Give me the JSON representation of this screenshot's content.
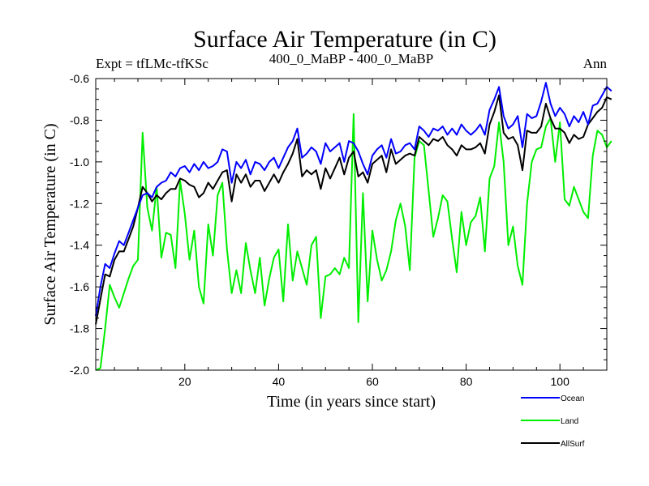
{
  "chart_data": {
    "type": "line",
    "title": "Surface Air Temperature (in C)",
    "left_string": "Expt = tfLMc-tfKSc",
    "center_string": "400_0_MaBP - 400_0_MaBP",
    "right_string": "Ann",
    "xlabel": "Time (in years since start)",
    "ylabel": "Surface Air Temperature (in C)",
    "xlim": [
      1,
      110
    ],
    "ylim": [
      -2.0,
      -0.6
    ],
    "x_ticks": [
      20,
      40,
      60,
      80,
      100
    ],
    "x_tick_labels": [
      "20",
      "40",
      "60",
      "80",
      "100"
    ],
    "y_ticks": [
      -2.0,
      -1.8,
      -1.6,
      -1.4,
      -1.2,
      -1.0,
      -0.8,
      -0.6
    ],
    "y_tick_labels": [
      "-2.0",
      "-1.8",
      "-1.6",
      "-1.4",
      "-1.2",
      "-1.0",
      "-0.8",
      "-0.6"
    ],
    "grid": false,
    "legend_position": "bottom-right",
    "series": [
      {
        "name": "Ocean",
        "color": "#0000ff",
        "values": [
          -1.74,
          -1.6,
          -1.49,
          -1.51,
          -1.44,
          -1.38,
          -1.4,
          -1.34,
          -1.28,
          -1.22,
          -1.16,
          -1.15,
          -1.17,
          -1.12,
          -1.1,
          -1.09,
          -1.05,
          -1.07,
          -1.03,
          -1.02,
          -1.05,
          -1.01,
          -1.04,
          -1.0,
          -1.03,
          -1.02,
          -1.0,
          -0.94,
          -0.95,
          -1.1,
          -1.0,
          -1.03,
          -0.99,
          -1.06,
          -1.0,
          -1.01,
          -1.04,
          -1.0,
          -0.98,
          -1.03,
          -0.98,
          -0.93,
          -0.9,
          -0.84,
          -0.98,
          -0.96,
          -0.93,
          -0.95,
          -1.01,
          -0.91,
          -0.95,
          -0.93,
          -0.91,
          -1.0,
          -0.9,
          -0.91,
          -0.95,
          -1.01,
          -1.06,
          -0.97,
          -0.94,
          -0.92,
          -0.98,
          -0.89,
          -0.96,
          -0.95,
          -0.92,
          -0.91,
          -0.94,
          -0.83,
          -0.85,
          -0.88,
          -0.84,
          -0.85,
          -0.83,
          -0.87,
          -0.84,
          -0.87,
          -0.82,
          -0.85,
          -0.87,
          -0.85,
          -0.82,
          -0.87,
          -0.75,
          -0.7,
          -0.64,
          -0.78,
          -0.84,
          -0.82,
          -0.78,
          -0.93,
          -0.77,
          -0.79,
          -0.78,
          -0.71,
          -0.62,
          -0.72,
          -0.78,
          -0.74,
          -0.77,
          -0.83,
          -0.78,
          -0.81,
          -0.76,
          -0.82,
          -0.73,
          -0.72,
          -0.68,
          -0.64,
          -0.66
        ]
      },
      {
        "name": "Land",
        "color": "#00ee00",
        "values": [
          -2.0,
          -1.99,
          -1.8,
          -1.59,
          -1.65,
          -1.7,
          -1.63,
          -1.56,
          -1.5,
          -1.47,
          -0.86,
          -1.22,
          -1.33,
          -1.12,
          -1.46,
          -1.34,
          -1.35,
          -1.51,
          -1.09,
          -1.25,
          -1.47,
          -1.33,
          -1.6,
          -1.68,
          -1.3,
          -1.45,
          -1.16,
          -1.1,
          -1.42,
          -1.63,
          -1.52,
          -1.63,
          -1.39,
          -1.52,
          -1.63,
          -1.46,
          -1.69,
          -1.56,
          -1.46,
          -1.42,
          -1.67,
          -1.3,
          -1.57,
          -1.43,
          -1.51,
          -1.59,
          -1.4,
          -1.36,
          -1.75,
          -1.55,
          -1.54,
          -1.51,
          -1.54,
          -1.46,
          -1.51,
          -0.77,
          -1.77,
          -1.15,
          -1.67,
          -1.33,
          -1.47,
          -1.57,
          -1.52,
          -1.43,
          -1.28,
          -1.2,
          -1.31,
          -1.52,
          -0.98,
          -0.9,
          -0.92,
          -1.14,
          -1.36,
          -1.27,
          -1.16,
          -1.19,
          -1.37,
          -1.53,
          -1.24,
          -1.4,
          -1.29,
          -1.26,
          -1.17,
          -1.43,
          -1.08,
          -1.02,
          -0.81,
          -1.0,
          -1.4,
          -1.31,
          -1.5,
          -1.59,
          -1.2,
          -1.0,
          -0.94,
          -0.93,
          -0.83,
          -0.79,
          -1.0,
          -0.81,
          -1.18,
          -1.21,
          -1.12,
          -1.18,
          -1.24,
          -1.27,
          -0.97,
          -0.85,
          -0.87,
          -0.93,
          -0.9
        ]
      },
      {
        "name": "AllSurf",
        "color": "#000000",
        "values": [
          -1.78,
          -1.66,
          -1.54,
          -1.55,
          -1.47,
          -1.43,
          -1.43,
          -1.37,
          -1.31,
          -1.22,
          -1.12,
          -1.15,
          -1.19,
          -1.16,
          -1.18,
          -1.15,
          -1.13,
          -1.13,
          -1.08,
          -1.09,
          -1.11,
          -1.12,
          -1.17,
          -1.15,
          -1.1,
          -1.13,
          -1.09,
          -1.05,
          -1.04,
          -1.19,
          -1.06,
          -1.1,
          -1.06,
          -1.12,
          -1.09,
          -1.09,
          -1.14,
          -1.1,
          -1.06,
          -1.1,
          -1.05,
          -1.01,
          -0.96,
          -0.89,
          -1.07,
          -1.04,
          -1.06,
          -1.04,
          -1.13,
          -1.03,
          -1.08,
          -1.03,
          -0.98,
          -1.06,
          -0.98,
          -0.95,
          -1.07,
          -1.05,
          -1.1,
          -1.01,
          -0.99,
          -0.97,
          -1.05,
          -0.94,
          -1.01,
          -0.99,
          -0.97,
          -0.96,
          -0.97,
          -0.88,
          -0.9,
          -0.92,
          -0.89,
          -0.9,
          -0.88,
          -0.92,
          -0.94,
          -0.97,
          -0.92,
          -0.94,
          -0.94,
          -0.93,
          -0.91,
          -0.96,
          -0.82,
          -0.76,
          -0.68,
          -0.86,
          -0.89,
          -0.88,
          -0.92,
          -1.04,
          -0.85,
          -0.86,
          -0.86,
          -0.83,
          -0.72,
          -0.79,
          -0.84,
          -0.84,
          -0.86,
          -0.91,
          -0.87,
          -0.89,
          -0.88,
          -0.82,
          -0.79,
          -0.76,
          -0.74,
          -0.69,
          -0.7
        ]
      }
    ]
  }
}
